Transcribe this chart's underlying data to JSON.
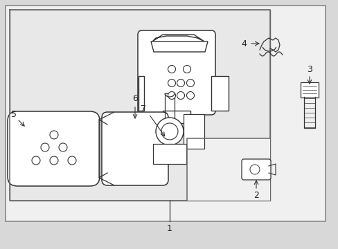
{
  "bg_color": "#d8d8d8",
  "inner_bg": "#e8e8e8",
  "line_color": "#333333",
  "text_color": "#222222",
  "border_color": "#666666"
}
